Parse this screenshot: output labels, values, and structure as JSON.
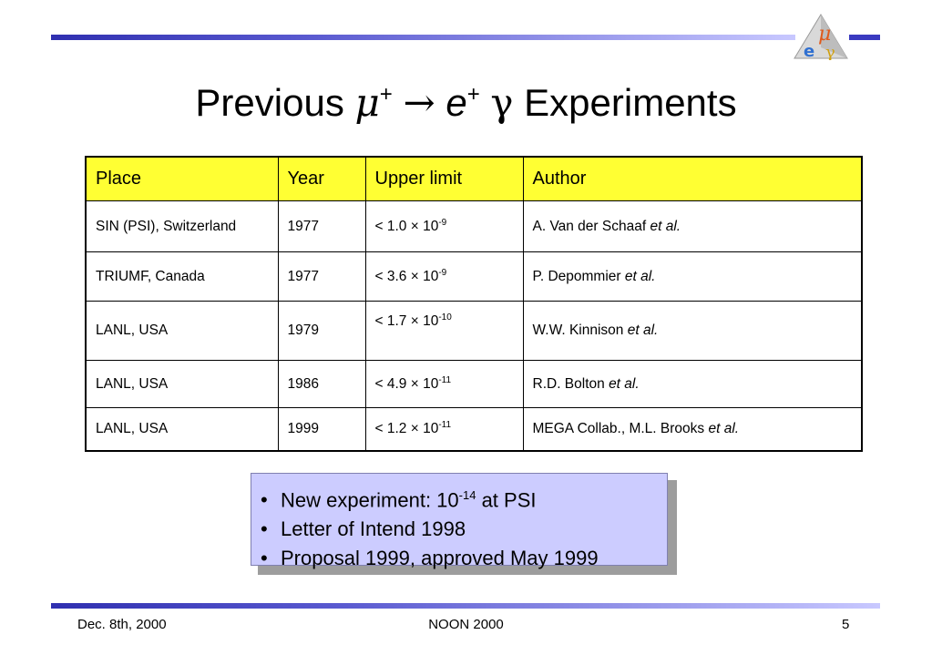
{
  "title": {
    "prefix": "Previous ",
    "mu": "μ",
    "mu_charge": "+",
    "arrow": "→",
    "e": "e",
    "e_charge": "+",
    "gamma": "γ",
    "suffix": " Experiments"
  },
  "logo": {
    "icon": "mu-e-gamma-triangle-icon",
    "mu": "μ",
    "e": "e",
    "gamma": "γ",
    "colors": {
      "triangle": "#d9d9d9",
      "mu": "#e05a1a",
      "e": "#3070d0",
      "gamma": "#d0a010"
    }
  },
  "table": {
    "headers": [
      "Place",
      "Year",
      "Upper limit",
      "Author"
    ],
    "header_color": "#ffff33",
    "rows": [
      {
        "place": "SIN (PSI), Switzerland",
        "year": "1977",
        "limit_base": "< 1.0 × 10",
        "limit_exp": "-9",
        "author": "A. Van der Schaaf ",
        "author_suffix": "et al."
      },
      {
        "place": "TRIUMF, Canada",
        "year": "1977",
        "limit_base": "< 3.6 × 10",
        "limit_exp": "-9",
        "author": "P. Depommier ",
        "author_suffix": "et al."
      },
      {
        "place": "LANL, USA",
        "year": "1979",
        "limit_base": "< 1.7 × 10",
        "limit_exp": "-10",
        "author": "W.W. Kinnison ",
        "author_suffix": "et al."
      },
      {
        "place": "LANL, USA",
        "year": "1986",
        "limit_base": "< 4.9 × 10",
        "limit_exp": "-11",
        "author": "R.D. Bolton ",
        "author_suffix": "et al."
      },
      {
        "place": "LANL, USA",
        "year": "1999",
        "limit_base": "< 1.2 × 10",
        "limit_exp": "-11",
        "author": "MEGA Collab., M.L. Brooks ",
        "author_suffix": "et al."
      }
    ]
  },
  "note": {
    "bullet": "•",
    "background": "#ccccff",
    "items": [
      {
        "text": "New experiment: 10",
        "sup": "-14",
        "after": " at PSI"
      },
      {
        "text": "Letter of Intend 1998"
      },
      {
        "text": "Proposal 1999, approved May 1999"
      }
    ]
  },
  "footer": {
    "date": "Dec. 8th, 2000",
    "conference": "NOON 2000",
    "page": "5"
  }
}
